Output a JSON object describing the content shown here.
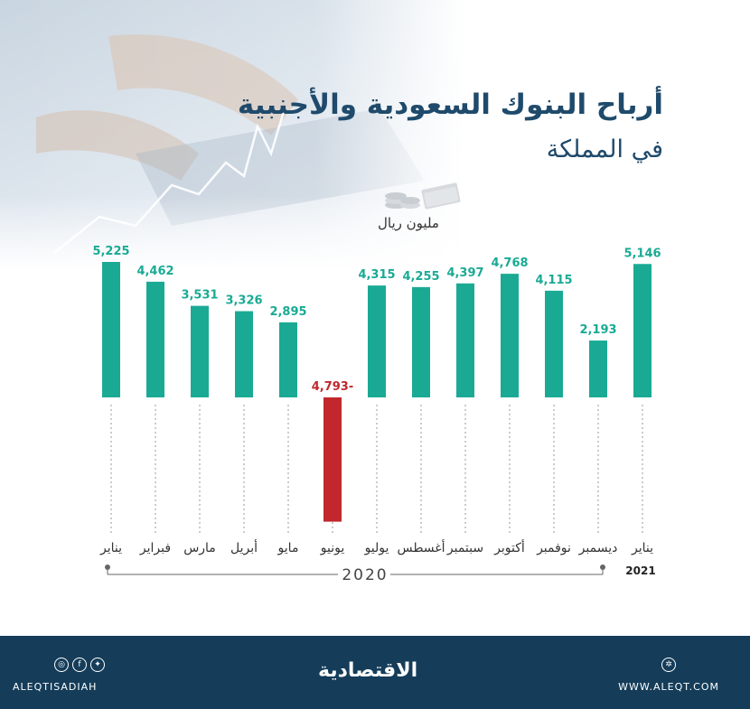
{
  "header": {
    "title": "أرباح البنوك السعودية والأجنبية",
    "subtitle": "في المملكة",
    "unit": "مليون ريال"
  },
  "footer": {
    "handle": "ALEQTISADIAH",
    "logo": "الاقتصادية",
    "website": "WWW.ALEQT.COM",
    "social_icons": [
      "instagram-icon",
      "facebook-icon",
      "twitter-icon"
    ]
  },
  "chart_data": {
    "type": "bar",
    "categories": [
      "يناير",
      "فبراير",
      "مارس",
      "أبريل",
      "مايو",
      "يونيو",
      "يوليو",
      "أغسطس",
      "سبتمبر",
      "أكتوبر",
      "نوفمبر",
      "ديسمبر",
      "يناير"
    ],
    "values": [
      5225,
      4462,
      3531,
      3326,
      2895,
      -4793,
      4315,
      4255,
      4397,
      4768,
      4115,
      2193,
      5146
    ],
    "value_labels": [
      "5,225",
      "4,462",
      "3,531",
      "3,326",
      "2,895",
      "4,793-",
      "4,315",
      "4,255",
      "4,397",
      "4,768",
      "4,115",
      "2,193",
      "5,146"
    ],
    "year_labels": {
      "2020": "2020",
      "2021": "2021"
    },
    "colors": {
      "positive": "#1aaa94",
      "negative": "#c1272d",
      "title": "#1f4a6b"
    }
  }
}
